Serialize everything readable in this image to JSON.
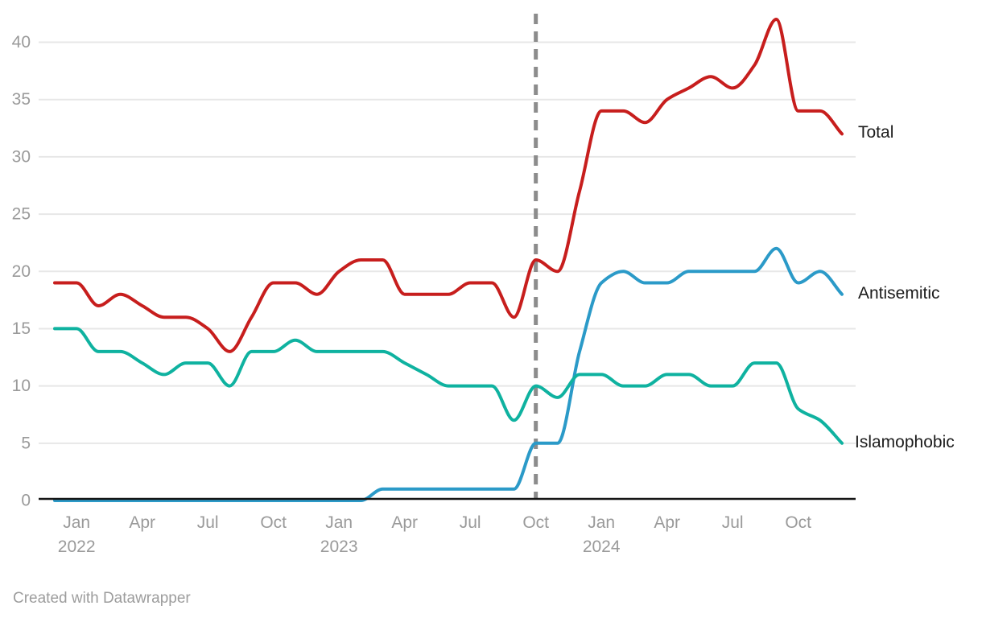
{
  "footer": {
    "credit": "Created with Datawrapper"
  },
  "chart_data": {
    "type": "line",
    "title": "",
    "x_interval": "monthly",
    "x_start": "2021-12",
    "x_end": "2024-12",
    "n_points": 37,
    "x": [
      "2021-12",
      "2022-01",
      "2022-02",
      "2022-03",
      "2022-04",
      "2022-05",
      "2022-06",
      "2022-07",
      "2022-08",
      "2022-09",
      "2022-10",
      "2022-11",
      "2022-12",
      "2023-01",
      "2023-02",
      "2023-03",
      "2023-04",
      "2023-05",
      "2023-06",
      "2023-07",
      "2023-08",
      "2023-09",
      "2023-10",
      "2023-11",
      "2023-12",
      "2024-01",
      "2024-02",
      "2024-03",
      "2024-04",
      "2024-05",
      "2024-06",
      "2024-07",
      "2024-08",
      "2024-09",
      "2024-10",
      "2024-11",
      "2024-12"
    ],
    "ylim": [
      0,
      42
    ],
    "yticks": [
      0,
      5,
      10,
      15,
      20,
      25,
      30,
      35,
      40
    ],
    "grid": "horizontal",
    "legend_position": "line-end-labels",
    "x_ticks": [
      {
        "label": "Jan",
        "year": "2022",
        "month_index": 1
      },
      {
        "label": "Apr",
        "year": "",
        "month_index": 4
      },
      {
        "label": "Jul",
        "year": "",
        "month_index": 7
      },
      {
        "label": "Oct",
        "year": "",
        "month_index": 10
      },
      {
        "label": "Jan",
        "year": "2023",
        "month_index": 13
      },
      {
        "label": "Apr",
        "year": "",
        "month_index": 16
      },
      {
        "label": "Jul",
        "year": "",
        "month_index": 19
      },
      {
        "label": "Oct",
        "year": "",
        "month_index": 22
      },
      {
        "label": "Jan",
        "year": "2024",
        "month_index": 25
      },
      {
        "label": "Apr",
        "year": "",
        "month_index": 28
      },
      {
        "label": "Jul",
        "year": "",
        "month_index": 31
      },
      {
        "label": "Oct",
        "year": "",
        "month_index": 34
      }
    ],
    "annotation_line": {
      "style": "dashed-vertical",
      "color": "#8c8c8c",
      "month_index": 22,
      "at": "2023-10"
    },
    "series": [
      {
        "name": "Total",
        "color": "#c71e1d",
        "values": [
          19,
          19,
          17,
          18,
          17,
          16,
          16,
          15,
          13,
          16,
          19,
          19,
          18,
          20,
          21,
          21,
          18,
          18,
          18,
          19,
          19,
          16,
          21,
          20,
          27,
          34,
          34,
          33,
          35,
          36,
          37,
          36,
          38,
          42,
          34,
          34,
          32
        ]
      },
      {
        "name": "Antisemitic",
        "color": "#2b9ac8",
        "values": [
          0,
          0,
          0,
          0,
          0,
          0,
          0,
          0,
          0,
          0,
          0,
          0,
          0,
          0,
          0,
          1,
          1,
          1,
          1,
          1,
          1,
          1,
          5,
          5,
          13,
          19,
          20,
          19,
          19,
          20,
          20,
          20,
          20,
          22,
          19,
          20,
          18
        ]
      },
      {
        "name": "Islamophobic",
        "color": "#0fb2a0",
        "values": [
          15,
          15,
          13,
          13,
          12,
          11,
          12,
          12,
          10,
          13,
          13,
          14,
          13,
          13,
          13,
          13,
          12,
          11,
          10,
          10,
          10,
          7,
          10,
          9,
          11,
          11,
          10,
          10,
          11,
          11,
          10,
          10,
          12,
          12,
          8,
          7,
          5
        ]
      }
    ],
    "theme_colors": {
      "grid": "#e7e7e7",
      "axis": "#151515",
      "tick_text": "#9a9a9a",
      "series_label_text": "#1c1c1c"
    }
  }
}
